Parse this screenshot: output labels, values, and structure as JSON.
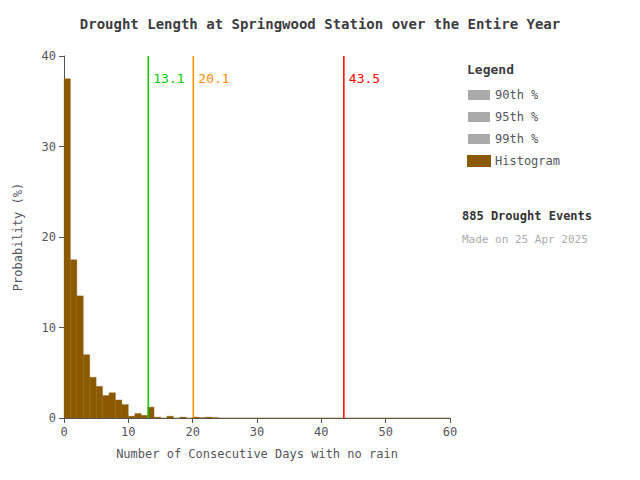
{
  "chart_data": {
    "type": "histogram",
    "title": "Drought Length at Springwood Station over the Entire Year",
    "x_label": "Number of Consecutive Days with no rain",
    "y_label": "Probability (%)",
    "bins": [
      0,
      1,
      2,
      3,
      4,
      5,
      6,
      7,
      8,
      9,
      10,
      11,
      12,
      13,
      14,
      15,
      16,
      17,
      18,
      19,
      20,
      21,
      22,
      23,
      24,
      25,
      26,
      27,
      28,
      29,
      30,
      31,
      32,
      33,
      34,
      35,
      36,
      37,
      38,
      39,
      40,
      41,
      42,
      43,
      44,
      45,
      46,
      47,
      48,
      49,
      50,
      51,
      52,
      53,
      54,
      55,
      56,
      57,
      58,
      59,
      60
    ],
    "values": [
      37.5,
      17.5,
      13.5,
      7.0,
      4.5,
      3.5,
      2.5,
      2.8,
      2.0,
      1.5,
      0.2,
      0.5,
      0.3,
      1.2,
      0.1,
      0.0,
      0.2,
      0.0,
      0.1,
      0.0,
      0.1,
      0.05,
      0.1,
      0.05,
      0.0,
      0.0,
      0.0,
      0.0,
      0.0,
      0.0,
      0.0,
      0.0,
      0.0,
      0.0,
      0.0,
      0.0,
      0.0,
      0.0,
      0.0,
      0.0,
      0.0,
      0.0,
      0.0,
      0.0,
      0.0,
      0.0,
      0.0,
      0.0,
      0.0,
      0.0,
      0.0,
      0.0,
      0.0,
      0.0,
      0.0,
      0.0,
      0.0,
      0.0,
      0.0,
      0.0
    ],
    "name": "Histogram",
    "color": "#8B5A00",
    "xlim": [
      0,
      60
    ],
    "ylim": [
      0,
      40
    ],
    "xticks": [
      0,
      10,
      20,
      30,
      40,
      50,
      60
    ],
    "yticks": [
      0,
      10,
      20,
      30,
      40
    ],
    "lines": [
      {
        "name": "90th %",
        "x": 13.1,
        "color": "#00CC00"
      },
      {
        "name": "95th %",
        "x": 20.1,
        "color": "#FF8C00"
      },
      {
        "name": "99th %",
        "x": 43.5,
        "color": "#FF0000"
      }
    ],
    "legend_line_color": "#AAAAAA",
    "legend_title": "Legend",
    "legend": "right",
    "grid": false,
    "annotations": [
      {
        "text": "885 Drought Events"
      },
      {
        "text": "Made on 25 Apr 2025",
        "color": "#AAAAAA"
      }
    ]
  }
}
